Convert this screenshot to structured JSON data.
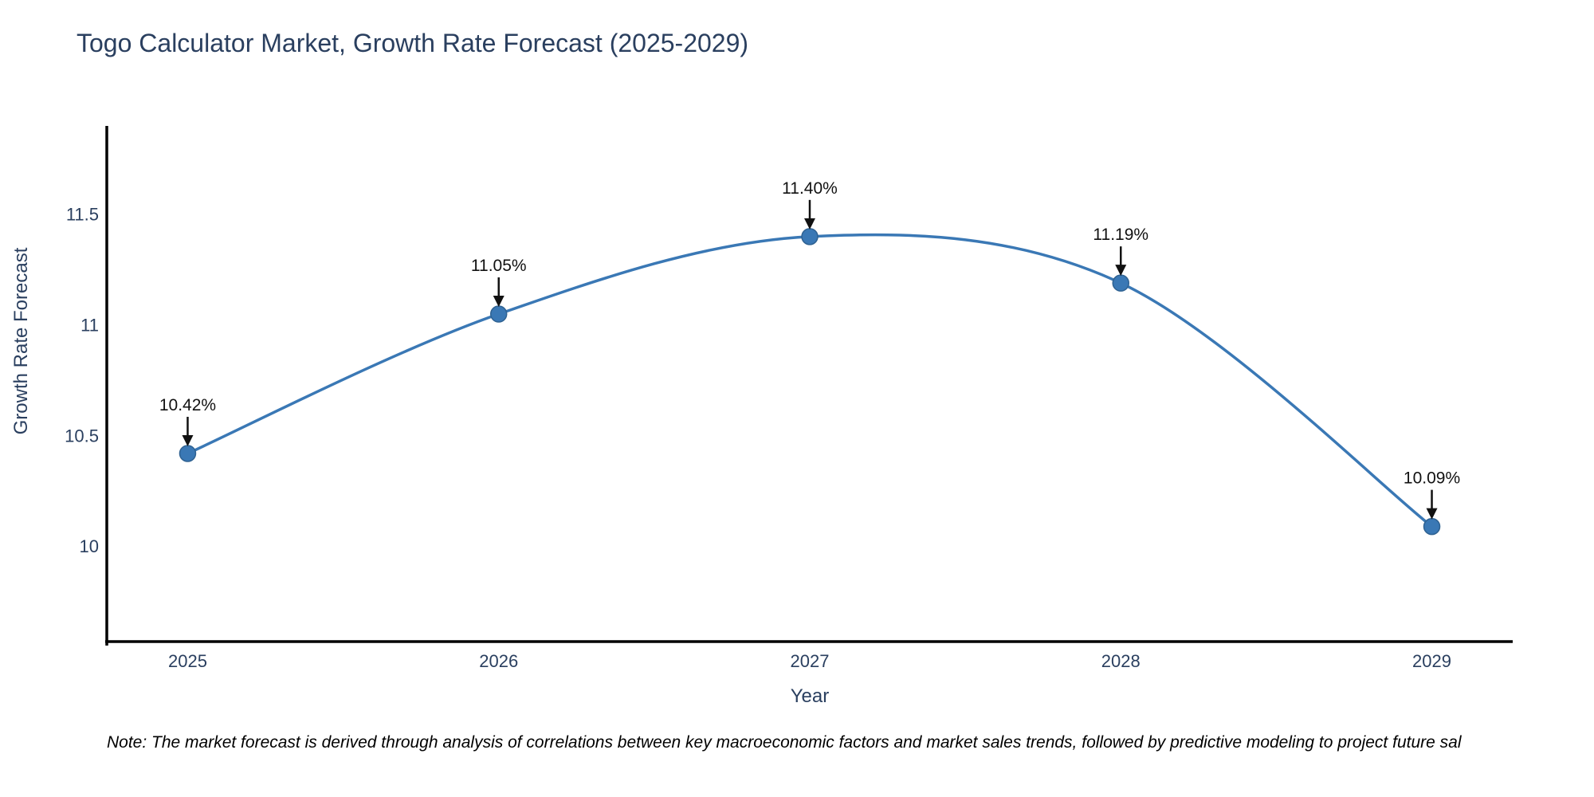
{
  "title": "Togo Calculator Market, Growth Rate Forecast (2025-2029)",
  "note": "Note: The market forecast is derived through analysis of correlations between key macroeconomic factors and market sales trends, followed by predictive modeling to project future sal",
  "chart_data": {
    "type": "line",
    "title": "Togo Calculator Market, Growth Rate Forecast (2025-2029)",
    "xlabel": "Year",
    "ylabel": "Growth Rate Forecast",
    "x": [
      2025,
      2026,
      2027,
      2028,
      2029
    ],
    "values": [
      10.42,
      11.05,
      11.4,
      11.19,
      10.09
    ],
    "point_labels": [
      "10.42%",
      "11.05%",
      "11.40%",
      "11.19%",
      "10.09%"
    ],
    "xtick_labels": [
      "2025",
      "2026",
      "2027",
      "2028",
      "2029"
    ],
    "yticks": [
      10,
      10.5,
      11,
      11.5
    ],
    "ytick_labels": [
      "10",
      "10.5",
      "11",
      "11.5"
    ],
    "xlim": [
      2024.74,
      2029.26
    ],
    "ylim": [
      9.57,
      11.9
    ],
    "line_shape": "spline",
    "grid": false,
    "legend": false,
    "line_color": "#3a78b5",
    "marker_color": "#3a78b5",
    "marker_edge_color": "#2f6292",
    "annotation_color": "#111111",
    "axis_color": "#000000",
    "tick_color": "#2a3f5f"
  }
}
